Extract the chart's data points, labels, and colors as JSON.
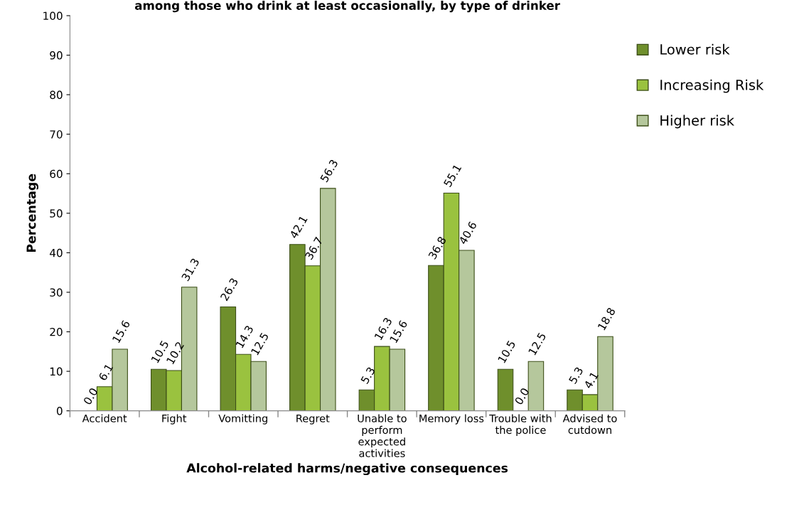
{
  "chart_data": {
    "type": "bar",
    "title": "among those who drink at least occasionally, by type of drinker",
    "xlabel": "Alcohol-related harms/negative consequences",
    "ylabel": "Percentage",
    "categories": [
      "Accident",
      "Fight",
      "Vomitting",
      "Regret",
      "Unable to\nperform\nexpected\nactivities",
      "Memory loss",
      "Trouble with\nthe police",
      "Advised to\ncutdown"
    ],
    "series": [
      {
        "name": "Lower risk",
        "color": "#6f8f2c",
        "values": [
          0.0,
          10.5,
          26.3,
          42.1,
          5.3,
          36.8,
          10.5,
          5.3
        ],
        "value_labels": [
          "0.0",
          "10.5",
          "26.3",
          "42.1",
          "5.3",
          "36.8",
          "10.5",
          "5.3"
        ]
      },
      {
        "name": "Increasing Risk",
        "color": "#9ac23f",
        "values": [
          6.1,
          10.2,
          14.3,
          36.7,
          16.3,
          55.1,
          0.0,
          4.1
        ],
        "value_labels": [
          "6.1",
          "10.2",
          "14.3",
          "36.7",
          "16.3",
          "55.1",
          "0.0",
          "4.1"
        ]
      },
      {
        "name": "Higher risk",
        "color": "#b5c79c",
        "values": [
          15.6,
          31.3,
          12.5,
          56.3,
          15.6,
          40.6,
          12.5,
          18.8
        ],
        "value_labels": [
          "15.6",
          "31.3",
          "12.5",
          "56.3",
          "15.6",
          "40.6",
          "12.5",
          "18.8"
        ]
      }
    ],
    "ylim": [
      0,
      100
    ],
    "yticks": [
      0,
      10,
      20,
      30,
      40,
      50,
      60,
      70,
      80,
      90,
      100
    ],
    "legend": "right",
    "grid": false
  }
}
